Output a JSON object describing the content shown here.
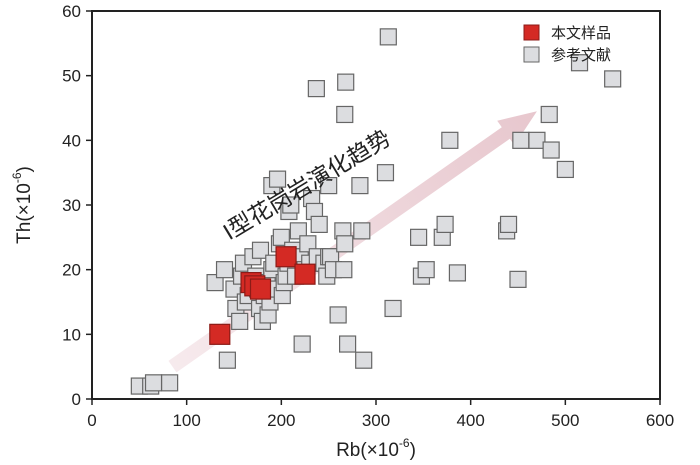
{
  "chart_data": {
    "type": "scatter",
    "xlabel": "Rb(×10",
    "xlabel_exp": "-6",
    "xlabel_close": ")",
    "ylabel": "Th(×10",
    "ylabel_exp": "-6",
    "ylabel_close": ")",
    "xlim": [
      0,
      600
    ],
    "ylim": [
      0,
      60
    ],
    "xticks": [
      "0",
      "100",
      "200",
      "300",
      "400",
      "500",
      "600"
    ],
    "yticks": [
      "0",
      "10",
      "20",
      "30",
      "40",
      "50",
      "60"
    ],
    "trend_label": "I型花岗岩演化趋势",
    "colors": {
      "this_study": "#d42a24",
      "literature_fill": "#dcdde0",
      "literature_stroke": "#666666",
      "arrow": "#ecd3d8"
    },
    "series": [
      {
        "name": "本文样品",
        "points": [
          [
            135,
            10
          ],
          [
            168,
            18
          ],
          [
            172,
            17.5
          ],
          [
            178,
            17
          ],
          [
            205,
            22
          ],
          [
            225,
            19.3
          ]
        ]
      },
      {
        "name": "参考文献",
        "points": [
          [
            50,
            2
          ],
          [
            62,
            2
          ],
          [
            65,
            2.5
          ],
          [
            82,
            2.5
          ],
          [
            130,
            18
          ],
          [
            140,
            20
          ],
          [
            143,
            6
          ],
          [
            150,
            17
          ],
          [
            152,
            14
          ],
          [
            156,
            12
          ],
          [
            158,
            19
          ],
          [
            160,
            21
          ],
          [
            162,
            15
          ],
          [
            165,
            16
          ],
          [
            168,
            18
          ],
          [
            170,
            22
          ],
          [
            173,
            19
          ],
          [
            175,
            17
          ],
          [
            177,
            14
          ],
          [
            178,
            23
          ],
          [
            180,
            12
          ],
          [
            182,
            16
          ],
          [
            185,
            18
          ],
          [
            186,
            13
          ],
          [
            188,
            15
          ],
          [
            190,
            20
          ],
          [
            190,
            33
          ],
          [
            192,
            21
          ],
          [
            195,
            17
          ],
          [
            196,
            34
          ],
          [
            198,
            24
          ],
          [
            200,
            25
          ],
          [
            201,
            16
          ],
          [
            203,
            18
          ],
          [
            205,
            19
          ],
          [
            207,
            21
          ],
          [
            208,
            29
          ],
          [
            210,
            30
          ],
          [
            212,
            23
          ],
          [
            215,
            19
          ],
          [
            218,
            26
          ],
          [
            220,
            22
          ],
          [
            222,
            8.5
          ],
          [
            225,
            20
          ],
          [
            228,
            24
          ],
          [
            230,
            21
          ],
          [
            232,
            31
          ],
          [
            235,
            29
          ],
          [
            237,
            48
          ],
          [
            238,
            22
          ],
          [
            240,
            27
          ],
          [
            245,
            21
          ],
          [
            248,
            19
          ],
          [
            250,
            22
          ],
          [
            250,
            33
          ],
          [
            252,
            22
          ],
          [
            255,
            20
          ],
          [
            260,
            13
          ],
          [
            265,
            26
          ],
          [
            266,
            20
          ],
          [
            267,
            24
          ],
          [
            267,
            44
          ],
          [
            268,
            49
          ],
          [
            270,
            8.5
          ],
          [
            283,
            33
          ],
          [
            285,
            26
          ],
          [
            287,
            6
          ],
          [
            310,
            35
          ],
          [
            313,
            56
          ],
          [
            318,
            14
          ],
          [
            345,
            25
          ],
          [
            348,
            19
          ],
          [
            353,
            20
          ],
          [
            370,
            25
          ],
          [
            373,
            27
          ],
          [
            378,
            40
          ],
          [
            386,
            19.5
          ],
          [
            438,
            26
          ],
          [
            440,
            27
          ],
          [
            450,
            18.5
          ],
          [
            453,
            40
          ],
          [
            470,
            40
          ],
          [
            483,
            44
          ],
          [
            485,
            38.5
          ],
          [
            500,
            35.5
          ],
          [
            515,
            52
          ],
          [
            550,
            49.5
          ]
        ]
      }
    ]
  }
}
